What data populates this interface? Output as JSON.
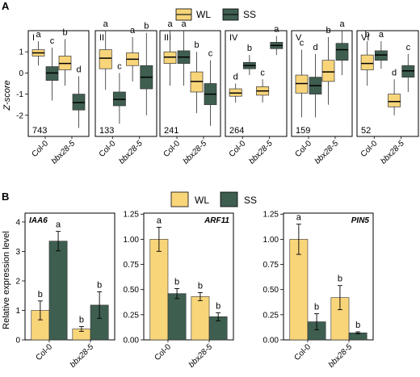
{
  "colors": {
    "WL": "#f9d57a",
    "SS": "#3e5e50",
    "WL_median": "#222222",
    "SS_median": "#111111",
    "frame": "#000000",
    "whisker": "#444444"
  },
  "panel_A": {
    "letter": "A",
    "legend": [
      "WL",
      "SS"
    ],
    "ylabel": "Z-score",
    "categories": [
      "Col-0",
      "bbx28-5"
    ]
  },
  "panel_B": {
    "letter": "B",
    "legend": [
      "WL",
      "SS"
    ],
    "ylabel": "Relative expression level",
    "categories": [
      "Col-0",
      "bbx28-5"
    ]
  },
  "chart_data": [
    {
      "type": "box",
      "title": "",
      "ylabel": "Z-score",
      "ylim": [
        -3,
        2
      ],
      "yticks": [
        -2,
        -1,
        0,
        1
      ],
      "categories": [
        "Col-0",
        "bbx28-5"
      ],
      "series_names": [
        "WL",
        "SS"
      ],
      "facets": [
        {
          "label": "I",
          "count": "743",
          "boxes": [
            {
              "series": "WL",
              "category": "Col-0",
              "min": 0.35,
              "q1": 0.8,
              "median": 0.95,
              "q3": 1.1,
              "max": 1.5,
              "letter": "a"
            },
            {
              "series": "SS",
              "category": "Col-0",
              "min": -1.3,
              "q1": -0.35,
              "median": 0.0,
              "q3": 0.3,
              "max": 1.2,
              "letter": "c"
            },
            {
              "series": "WL",
              "category": "bbx28-5",
              "min": -0.6,
              "q1": 0.15,
              "median": 0.45,
              "q3": 0.8,
              "max": 1.6,
              "letter": "b"
            },
            {
              "series": "SS",
              "category": "bbx28-5",
              "min": -2.6,
              "q1": -1.75,
              "median": -1.4,
              "q3": -1.0,
              "max": -0.15,
              "letter": "d"
            }
          ]
        },
        {
          "label": "II",
          "count": "133",
          "boxes": [
            {
              "series": "WL",
              "category": "Col-0",
              "min": -0.8,
              "q1": 0.2,
              "median": 0.7,
              "q3": 1.1,
              "max": 2.0,
              "letter": "a"
            },
            {
              "series": "SS",
              "category": "Col-0",
              "min": -2.4,
              "q1": -1.55,
              "median": -1.25,
              "q3": -0.9,
              "max": 0.0,
              "letter": "c"
            },
            {
              "series": "WL",
              "category": "bbx28-5",
              "min": -0.4,
              "q1": 0.35,
              "median": 0.65,
              "q3": 0.95,
              "max": 1.7,
              "letter": "a"
            },
            {
              "series": "SS",
              "category": "bbx28-5",
              "min": -2.0,
              "q1": -0.75,
              "median": -0.2,
              "q3": 0.35,
              "max": 1.9,
              "letter": "b"
            }
          ]
        },
        {
          "label": "III",
          "count": "241",
          "boxes": [
            {
              "series": "WL",
              "category": "Col-0",
              "min": -0.6,
              "q1": 0.45,
              "median": 0.75,
              "q3": 1.0,
              "max": 2.0,
              "letter": "a"
            },
            {
              "series": "SS",
              "category": "Col-0",
              "min": -0.6,
              "q1": 0.45,
              "median": 0.75,
              "q3": 1.05,
              "max": 2.0,
              "letter": "a"
            },
            {
              "series": "WL",
              "category": "bbx28-5",
              "min": -1.9,
              "q1": -0.9,
              "median": -0.4,
              "q3": 0.05,
              "max": 1.0,
              "letter": "b"
            },
            {
              "series": "SS",
              "category": "bbx28-5",
              "min": -2.5,
              "q1": -1.5,
              "median": -1.0,
              "q3": -0.5,
              "max": 0.6,
              "letter": "c"
            }
          ]
        },
        {
          "label": "IV",
          "count": "264",
          "boxes": [
            {
              "series": "WL",
              "category": "Col-0",
              "min": -1.4,
              "q1": -1.1,
              "median": -0.95,
              "q3": -0.75,
              "max": -0.5,
              "letter": "d"
            },
            {
              "series": "SS",
              "category": "Col-0",
              "min": -0.1,
              "q1": 0.2,
              "median": 0.35,
              "q3": 0.5,
              "max": 0.85,
              "letter": "b"
            },
            {
              "series": "WL",
              "category": "bbx28-5",
              "min": -1.4,
              "q1": -1.05,
              "median": -0.85,
              "q3": -0.65,
              "max": -0.3,
              "letter": "c"
            },
            {
              "series": "SS",
              "category": "bbx28-5",
              "min": 0.85,
              "q1": 1.15,
              "median": 1.3,
              "q3": 1.45,
              "max": 1.75,
              "letter": "a"
            }
          ]
        },
        {
          "label": "V",
          "count": "159",
          "boxes": [
            {
              "series": "WL",
              "category": "Col-0",
              "min": -2.1,
              "q1": -0.95,
              "median": -0.5,
              "q3": -0.1,
              "max": 1.1,
              "letter": "c"
            },
            {
              "series": "SS",
              "category": "Col-0",
              "min": -2.1,
              "q1": -1.0,
              "median": -0.6,
              "q3": -0.2,
              "max": 0.9,
              "letter": "d"
            },
            {
              "series": "WL",
              "category": "bbx28-5",
              "min": -1.5,
              "q1": -0.4,
              "median": 0.05,
              "q3": 0.6,
              "max": 1.7,
              "letter": "b"
            },
            {
              "series": "SS",
              "category": "bbx28-5",
              "min": -0.1,
              "q1": 0.6,
              "median": 1.1,
              "q3": 1.4,
              "max": 2.0,
              "letter": "a"
            }
          ]
        },
        {
          "label": "VI",
          "count": "52",
          "boxes": [
            {
              "series": "WL",
              "category": "Col-0",
              "min": -0.6,
              "q1": 0.15,
              "median": 0.45,
              "q3": 0.85,
              "max": 1.5,
              "letter": "b"
            },
            {
              "series": "SS",
              "category": "Col-0",
              "min": 0.2,
              "q1": 0.6,
              "median": 0.85,
              "q3": 1.05,
              "max": 1.5,
              "letter": "a"
            },
            {
              "series": "WL",
              "category": "bbx28-5",
              "min": -2.0,
              "q1": -1.6,
              "median": -1.35,
              "q3": -1.0,
              "max": -0.3,
              "letter": "d"
            },
            {
              "series": "SS",
              "category": "bbx28-5",
              "min": -0.9,
              "q1": -0.2,
              "median": 0.1,
              "q3": 0.35,
              "max": 0.9,
              "letter": "c"
            }
          ]
        }
      ]
    },
    {
      "type": "bar",
      "title": "",
      "ylabel": "Relative expression level",
      "categories": [
        "Col-0",
        "bbx28-5"
      ],
      "series_names": [
        "WL",
        "SS"
      ],
      "facets": [
        {
          "gene": "IAA6",
          "ylim": [
            0,
            4.3
          ],
          "yticks": [
            0,
            1,
            2,
            3,
            4
          ],
          "values": {
            "WL": [
              1.0,
              0.37
            ],
            "SS": [
              3.35,
              1.18
            ]
          },
          "errors": {
            "WL": [
              0.32,
              0.08
            ],
            "SS": [
              0.33,
              0.45
            ]
          },
          "letters": {
            "WL": [
              "b",
              "b"
            ],
            "SS": [
              "a",
              "b"
            ]
          }
        },
        {
          "gene": "ARF11",
          "ylim": [
            0,
            1.26
          ],
          "yticks": [
            0.0,
            0.25,
            0.5,
            0.75,
            1.0,
            1.25
          ],
          "ytick_labels": [
            "0.00",
            "0.25",
            "0.50",
            "0.75",
            "1.00",
            "1.25"
          ],
          "values": {
            "WL": [
              1.0,
              0.43
            ],
            "SS": [
              0.46,
              0.23
            ]
          },
          "errors": {
            "WL": [
              0.12,
              0.04
            ],
            "SS": [
              0.05,
              0.04
            ]
          },
          "letters": {
            "WL": [
              "a",
              "b"
            ],
            "SS": [
              "b",
              "b"
            ]
          }
        },
        {
          "gene": "PIN5",
          "ylim": [
            0,
            1.26
          ],
          "yticks": [
            0.0,
            0.25,
            0.5,
            0.75,
            1.0,
            1.25
          ],
          "ytick_labels": [
            "0.00",
            "0.25",
            "0.50",
            "0.75",
            "1.00",
            "1.25"
          ],
          "values": {
            "WL": [
              1.0,
              0.42
            ],
            "SS": [
              0.18,
              0.07
            ]
          },
          "errors": {
            "WL": [
              0.15,
              0.12
            ],
            "SS": [
              0.08,
              0.01
            ]
          },
          "letters": {
            "WL": [
              "a",
              "b"
            ],
            "SS": [
              "b",
              "b"
            ]
          }
        }
      ]
    }
  ]
}
